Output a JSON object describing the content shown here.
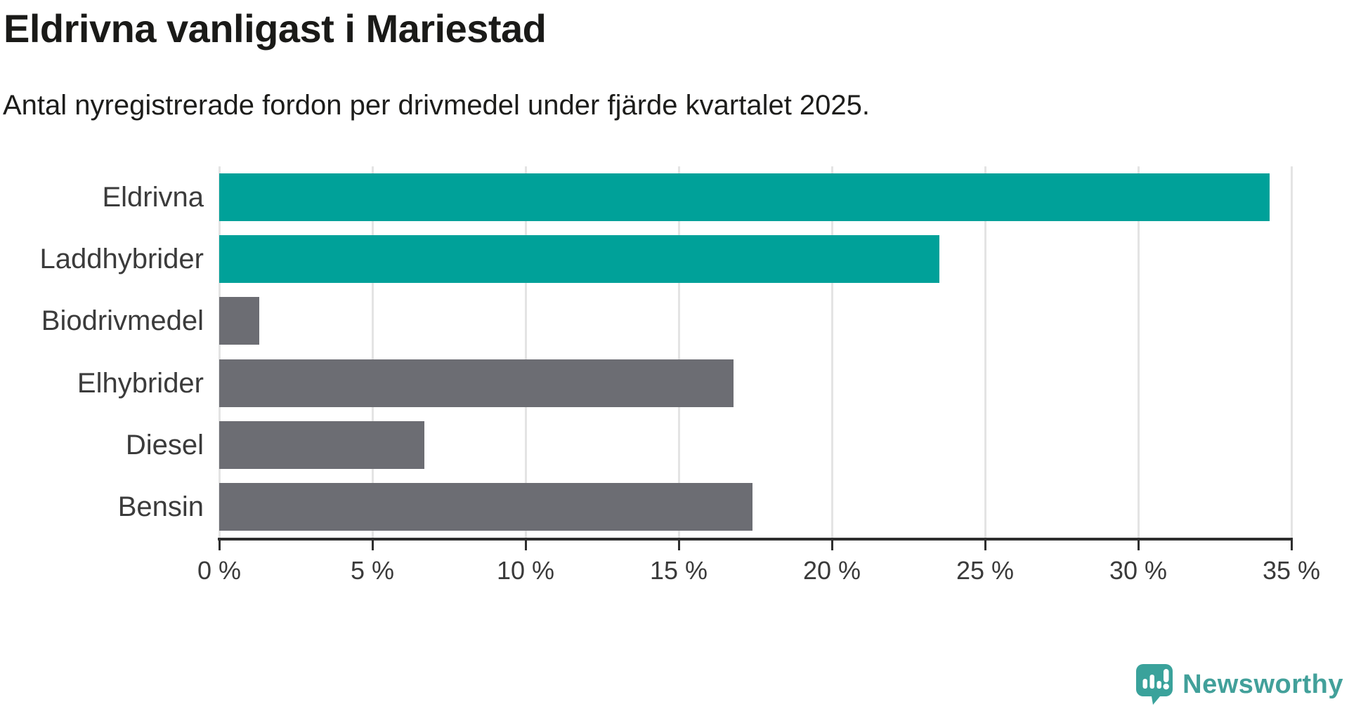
{
  "chart_data": {
    "type": "bar",
    "orientation": "horizontal",
    "title": "Eldrivna vanligast i Mariestad",
    "subtitle": "Antal nyregistrerade fordon per drivmedel under fjärde kvartalet 2025.",
    "categories": [
      "Eldrivna",
      "Laddhybrider",
      "Biodrivmedel",
      "Elhybrider",
      "Diesel",
      "Bensin"
    ],
    "values": [
      34.3,
      23.5,
      1.3,
      16.8,
      6.7,
      17.4
    ],
    "unit": "%",
    "bar_colors": [
      "#00a199",
      "#00a199",
      "#6c6d73",
      "#6c6d73",
      "#6c6d73",
      "#6c6d73"
    ],
    "xlim": [
      0,
      35
    ],
    "x_ticks": [
      0,
      5,
      10,
      15,
      20,
      25,
      30,
      35
    ],
    "x_tick_labels": [
      "0 %",
      "5 %",
      "10 %",
      "15 %",
      "20 %",
      "25 %",
      "30 %",
      "35 %"
    ],
    "xlabel": "",
    "ylabel": "",
    "grid": "vertical",
    "legend": "none"
  },
  "colors": {
    "highlight_teal": "#00a199",
    "neutral_gray": "#6c6d73",
    "title_text": "#1a1a18",
    "label_text": "#3b3b3b",
    "axis_line": "#2e2e2e",
    "gridline": "#e4e4e4",
    "background": "#ffffff",
    "brand_teal": "#42a09a"
  },
  "branding": {
    "logo_text": "Newsworthy",
    "logo_icon": "speech-bubble-bar-chart-icon"
  }
}
